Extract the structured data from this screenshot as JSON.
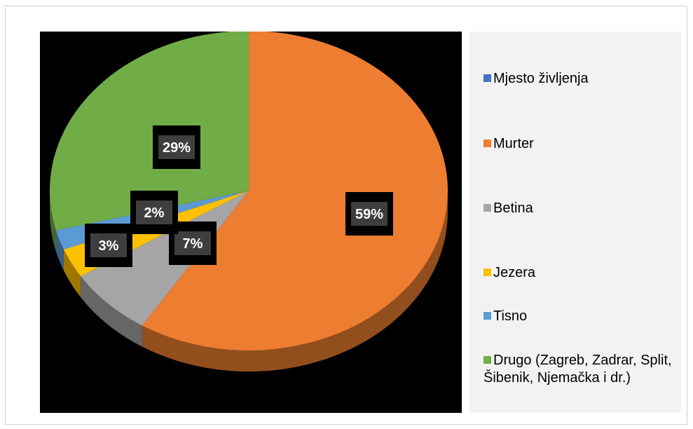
{
  "chart_data": {
    "type": "pie",
    "three_d": true,
    "legend_position": "right",
    "legend_title": "Mjesto življenja",
    "categories": [
      "Murter",
      "Betina",
      "Jezera",
      "Tisno",
      "Drugo (Zagreb, Zadrar, Split, Šibenik, Njemačka i dr.)"
    ],
    "values": [
      59,
      7,
      3,
      2,
      29
    ],
    "labels": [
      "59%",
      "7%",
      "3%",
      "2%",
      "29%"
    ],
    "colors": {
      "legend_title": "#4472c4",
      "Murter": "#ed7d31",
      "Betina": "#a5a5a5",
      "Jezera": "#ffc000",
      "Tisno": "#5b9bd5",
      "Drugo": "#70ad47",
      "plot_background": "#000000",
      "legend_background": "#f2f2f2"
    }
  }
}
